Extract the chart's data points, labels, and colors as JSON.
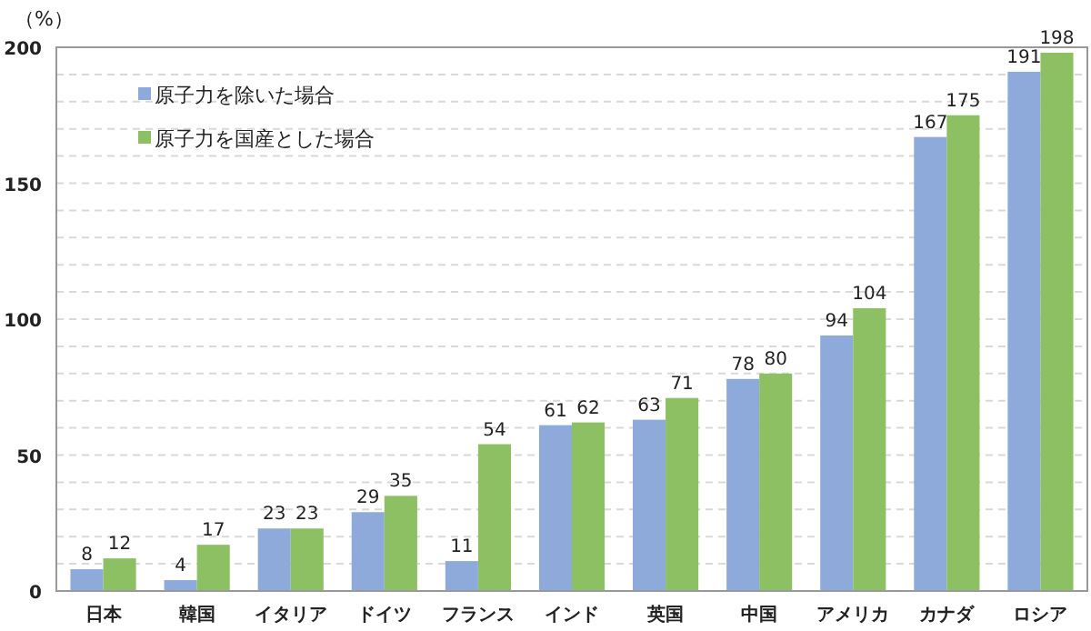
{
  "chart_data": {
    "type": "bar",
    "ylabel": "（%）",
    "categories": [
      "日本",
      "韓国",
      "イタリア",
      "ドイツ",
      "フランス",
      "インド",
      "英国",
      "中国",
      "アメリカ",
      "カナダ",
      "ロシア"
    ],
    "series": [
      {
        "name": "原子力を除いた場合",
        "color": "#8eaadb",
        "values": [
          8,
          4,
          23,
          29,
          11,
          61,
          63,
          78,
          94,
          167,
          191
        ]
      },
      {
        "name": "原子力を国産とした場合",
        "color": "#8cc063",
        "values": [
          12,
          17,
          23,
          35,
          54,
          62,
          71,
          80,
          104,
          175,
          198
        ]
      }
    ],
    "ylim": [
      0,
      200
    ],
    "yticks": [
      0,
      {
        "value": 10,
        "label": null
      },
      {
        "value": 20,
        "label": null
      },
      {
        "value": 30,
        "label": null
      },
      {
        "value": 40,
        "label": null
      },
      50,
      {
        "value": 60,
        "label": null
      },
      {
        "value": 70,
        "label": null
      },
      {
        "value": 80,
        "label": null
      },
      {
        "value": 90,
        "label": null
      },
      100,
      {
        "value": 110,
        "label": null
      },
      {
        "value": 120,
        "label": null
      },
      {
        "value": 130,
        "label": null
      },
      {
        "value": 140,
        "label": null
      },
      150,
      {
        "value": 160,
        "label": null
      },
      {
        "value": 170,
        "label": null
      },
      {
        "value": 180,
        "label": null
      },
      {
        "value": 190,
        "label": null
      },
      200
    ],
    "grid": "y",
    "legend": "top left",
    "data_labels": true
  }
}
